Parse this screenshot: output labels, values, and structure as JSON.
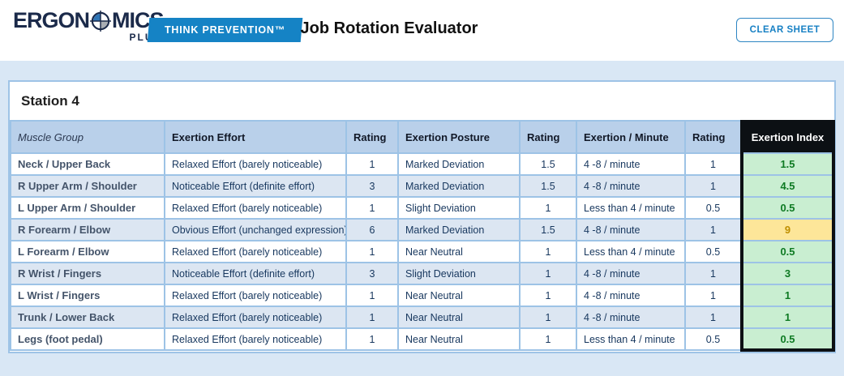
{
  "header": {
    "logo": {
      "word_part1": "ERGON",
      "word_part2": "MICS",
      "subtext": "PLUS",
      "icon": "target-roundel-icon"
    },
    "badge_label": "THINK PREVENTION™",
    "title": "Job Rotation Evaluator",
    "clear_button_label": "CLEAR SHEET"
  },
  "station": {
    "title": "Station 4"
  },
  "table": {
    "columns": {
      "muscle": "Muscle Group",
      "effort": "Exertion Effort",
      "effort_rating": "Rating",
      "posture": "Exertion Posture",
      "posture_rating": "Rating",
      "frequency": "Exertion / Minute",
      "frequency_rating": "Rating",
      "index": "Exertion Index"
    },
    "rows": [
      {
        "muscle": "Neck / Upper Back",
        "effort": "Relaxed Effort (barely noticeable)",
        "effort_rating": "1",
        "posture": "Marked Deviation",
        "posture_rating": "1.5",
        "frequency": "4 -8 / minute",
        "frequency_rating": "1",
        "index": "1.5",
        "index_status": "good"
      },
      {
        "muscle": "R Upper Arm / Shoulder",
        "effort": "Noticeable Effort (definite effort)",
        "effort_rating": "3",
        "posture": "Marked Deviation",
        "posture_rating": "1.5",
        "frequency": "4 -8 / minute",
        "frequency_rating": "1",
        "index": "4.5",
        "index_status": "good"
      },
      {
        "muscle": "L Upper Arm / Shoulder",
        "effort": "Relaxed Effort (barely noticeable)",
        "effort_rating": "1",
        "posture": "Slight Deviation",
        "posture_rating": "1",
        "frequency": "Less than 4 / minute",
        "frequency_rating": "0.5",
        "index": "0.5",
        "index_status": "good"
      },
      {
        "muscle": "R Forearm / Elbow",
        "effort": "Obvious Effort (unchanged expression)",
        "effort_rating": "6",
        "posture": "Marked Deviation",
        "posture_rating": "1.5",
        "frequency": "4 -8 / minute",
        "frequency_rating": "1",
        "index": "9",
        "index_status": "warn"
      },
      {
        "muscle": "L Forearm / Elbow",
        "effort": "Relaxed Effort (barely noticeable)",
        "effort_rating": "1",
        "posture": "Near Neutral",
        "posture_rating": "1",
        "frequency": "Less than 4 / minute",
        "frequency_rating": "0.5",
        "index": "0.5",
        "index_status": "good"
      },
      {
        "muscle": "R Wrist / Fingers",
        "effort": "Noticeable Effort (definite effort)",
        "effort_rating": "3",
        "posture": "Slight Deviation",
        "posture_rating": "1",
        "frequency": "4 -8 / minute",
        "frequency_rating": "1",
        "index": "3",
        "index_status": "good"
      },
      {
        "muscle": "L Wrist / Fingers",
        "effort": "Relaxed Effort (barely noticeable)",
        "effort_rating": "1",
        "posture": "Near Neutral",
        "posture_rating": "1",
        "frequency": "4 -8 / minute",
        "frequency_rating": "1",
        "index": "1",
        "index_status": "good"
      },
      {
        "muscle": "Trunk / Lower Back",
        "effort": "Relaxed Effort (barely noticeable)",
        "effort_rating": "1",
        "posture": "Near Neutral",
        "posture_rating": "1",
        "frequency": "4 -8 / minute",
        "frequency_rating": "1",
        "index": "1",
        "index_status": "good"
      },
      {
        "muscle": "Legs (foot pedal)",
        "effort": "Relaxed Effort (barely noticeable)",
        "effort_rating": "1",
        "posture": "Near Neutral",
        "posture_rating": "1",
        "frequency": "Less than 4 / minute",
        "frequency_rating": "0.5",
        "index": "0.5",
        "index_status": "good"
      }
    ]
  },
  "colors": {
    "accent_blue": "#1583c5",
    "panel_border_blue": "#9dc3e6",
    "header_row_blue": "#b9d0ea",
    "alt_row_blue": "#dce6f2",
    "index_header_black": "#0c1014",
    "index_good_bg": "#c9eed1",
    "index_good_text": "#0e7a23",
    "index_warn_bg": "#fde699",
    "index_warn_text": "#bf8f00",
    "logo_navy": "#1b2a4a"
  }
}
